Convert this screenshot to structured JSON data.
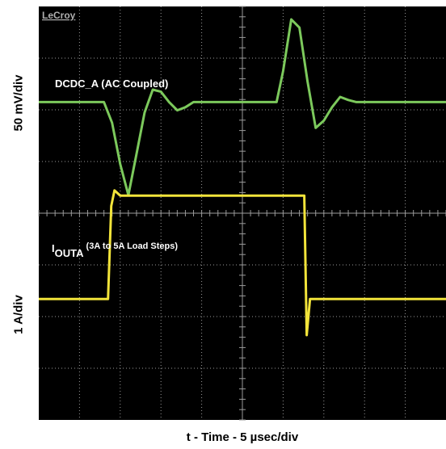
{
  "brand": "LeCroy",
  "colors": {
    "background": "#000000",
    "grid": "#9a9a9a",
    "trace_voltage": "#7cc95c",
    "trace_current": "#f2e43a",
    "label_text": "#ffffff"
  },
  "labels": {
    "ylabel_top": "50 mV/div",
    "ylabel_bottom": "1 A/div",
    "xlabel": "t - Time - 5 µsec/div",
    "trace_voltage_label": "DCDC_A (AC Coupled)",
    "trace_current_label_main": "I",
    "trace_current_label_sub": "OUTA",
    "trace_current_label_rest": " (3A to 5A Load Steps)"
  },
  "chart_data": {
    "type": "line",
    "x_unit_per_div": "5 µsec/div",
    "grid": {
      "x_divisions": 10,
      "y_divisions": 8
    },
    "xlim": [
      0,
      50
    ],
    "series": [
      {
        "name": "DCDC_A (AC Coupled)",
        "unit": "mV",
        "scale_per_div": "50 mV/div",
        "x": [
          0,
          8,
          9,
          10,
          11,
          12,
          13,
          14,
          15,
          16,
          17,
          18,
          19,
          20,
          29.2,
          30,
          31,
          32,
          33,
          34,
          35,
          36,
          37,
          38,
          39,
          40,
          50
        ],
        "y": [
          0,
          0,
          -20,
          -60,
          -90,
          -50,
          -10,
          12,
          10,
          0,
          -8,
          -5,
          0,
          0,
          0,
          30,
          80,
          72,
          20,
          -25,
          -18,
          -5,
          5,
          2,
          0,
          0,
          0
        ]
      },
      {
        "name": "IOUTA (3A to 5A Load Steps)",
        "unit": "A",
        "scale_per_div": "1 A/div",
        "x": [
          0,
          8.5,
          8.9,
          9.3,
          10,
          32,
          32.6,
          32.9,
          33.3,
          50
        ],
        "y": [
          3,
          3,
          4.8,
          5.1,
          5,
          5,
          5,
          2.3,
          3,
          3
        ]
      }
    ]
  }
}
